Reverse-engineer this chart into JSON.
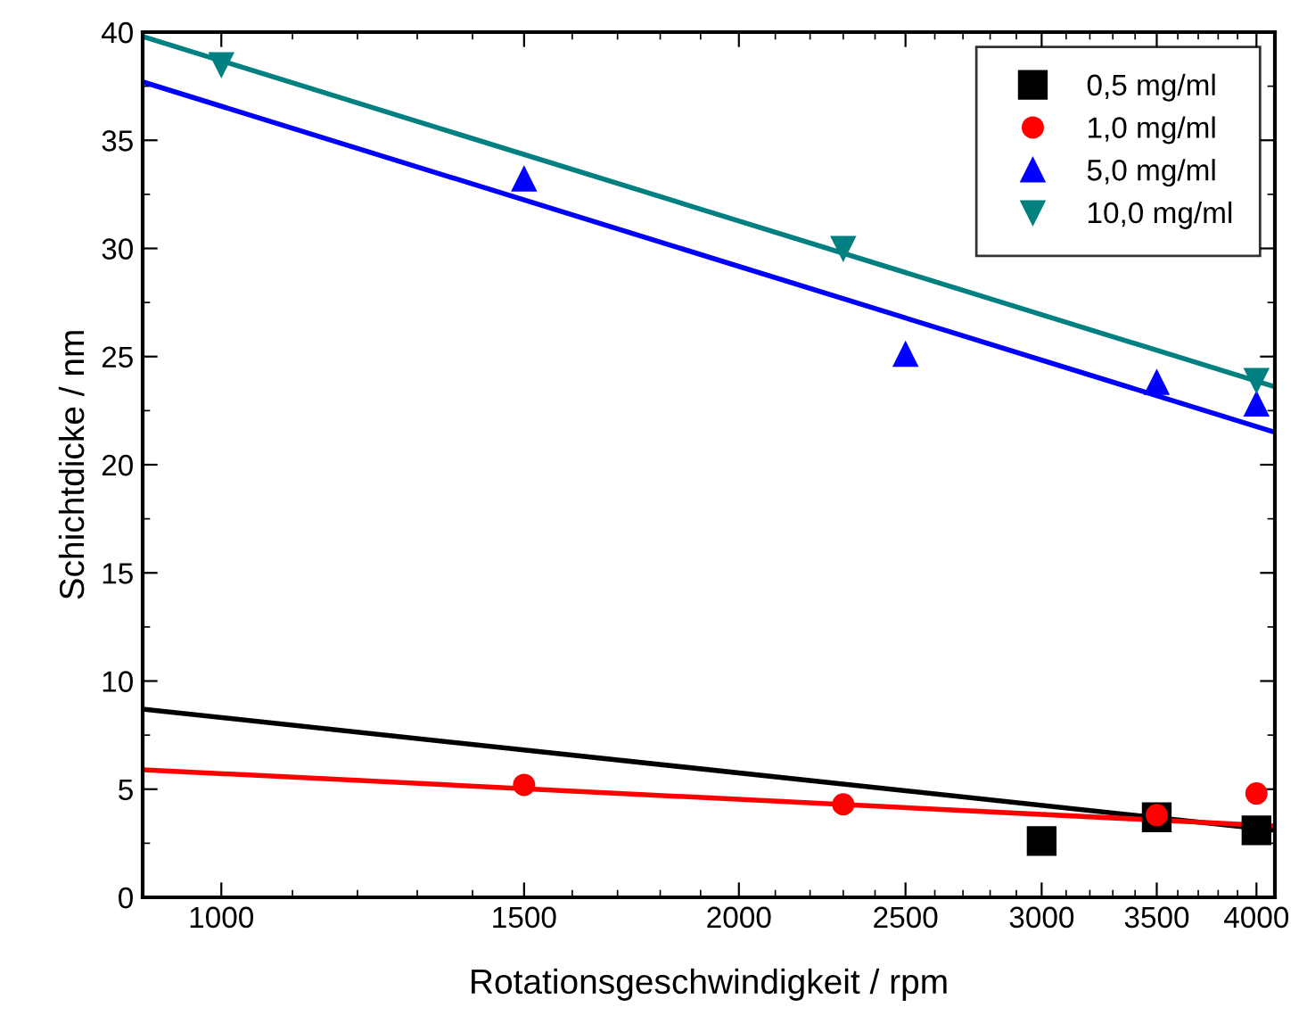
{
  "chart_data": {
    "type": "scatter",
    "xlabel": "Rotationsgeschwindigkeit / rpm",
    "ylabel": "Schichtdicke / nm",
    "log": "x",
    "xlim": [
      900,
      4100
    ],
    "xticks": [
      1000,
      1500,
      2000,
      2500,
      3000,
      3500,
      4000
    ],
    "ylim": [
      0,
      40
    ],
    "yticks": [
      0,
      5,
      10,
      15,
      20,
      25,
      30,
      35,
      40
    ],
    "grid": false,
    "legend": "top right",
    "series": [
      {
        "name": "0,5 mg/ml",
        "color": "#000000",
        "marker": "square",
        "x": [
          3000,
          3500,
          4000
        ],
        "values": [
          2.6,
          3.7,
          3.1
        ]
      },
      {
        "name": "1,0 mg/ml",
        "color": "#ff0000",
        "marker": "circle",
        "x": [
          1500,
          2300,
          3500,
          4000
        ],
        "values": [
          5.2,
          4.3,
          3.8,
          4.8
        ]
      },
      {
        "name": "5,0 mg/ml",
        "color": "#0000ff",
        "marker": "triangle",
        "x": [
          1500,
          2500,
          3500,
          4000
        ],
        "values": [
          33.2,
          25.1,
          23.8,
          22.8
        ]
      },
      {
        "name": "10,0 mg/ml",
        "color": "#008080",
        "marker": "triangle_down",
        "x": [
          1000,
          2300,
          4000
        ],
        "values": [
          38.5,
          30.0,
          23.9
        ]
      },
      {
        "type": "line",
        "color": "#000000",
        "x": [
          900,
          4100
        ],
        "values": [
          8.7,
          3.1
        ]
      },
      {
        "type": "line",
        "color": "#ff0000",
        "x": [
          900,
          4100
        ],
        "values": [
          5.9,
          3.3
        ]
      },
      {
        "type": "line",
        "color": "#0000ff",
        "x": [
          900,
          4100
        ],
        "values": [
          37.7,
          21.5
        ]
      },
      {
        "type": "line",
        "color": "#008080",
        "x": [
          900,
          4100
        ],
        "values": [
          39.8,
          23.6
        ]
      }
    ]
  }
}
